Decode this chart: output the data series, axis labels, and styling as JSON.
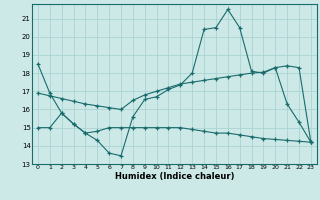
{
  "xlabel": "Humidex (Indice chaleur)",
  "bg_color": "#cce9e8",
  "grid_color": "#aad4d3",
  "line_color": "#1a6b6b",
  "xlim": [
    -0.5,
    23.5
  ],
  "ylim": [
    13,
    21.8
  ],
  "yticks": [
    13,
    14,
    15,
    16,
    17,
    18,
    19,
    20,
    21
  ],
  "xticks": [
    0,
    1,
    2,
    3,
    4,
    5,
    6,
    7,
    8,
    9,
    10,
    11,
    12,
    13,
    14,
    15,
    16,
    17,
    18,
    19,
    20,
    21,
    22,
    23
  ],
  "series1_x": [
    0,
    1,
    2,
    3,
    4,
    5,
    6,
    7,
    8,
    9,
    10,
    11,
    12,
    13,
    14,
    15,
    16,
    17,
    18,
    19,
    20,
    21,
    22,
    23
  ],
  "series1_y": [
    18.5,
    16.9,
    15.8,
    15.2,
    14.7,
    14.3,
    13.6,
    13.45,
    15.6,
    16.55,
    16.7,
    17.1,
    17.35,
    18.0,
    20.4,
    20.5,
    21.5,
    20.5,
    18.1,
    18.0,
    18.3,
    16.3,
    15.3,
    14.2
  ],
  "series2_x": [
    0,
    1,
    2,
    3,
    4,
    5,
    6,
    7,
    8,
    9,
    10,
    11,
    12,
    13,
    14,
    15,
    16,
    17,
    18,
    19,
    20,
    21,
    22,
    23
  ],
  "series2_y": [
    15.0,
    15.0,
    15.8,
    15.2,
    14.7,
    14.8,
    15.0,
    15.0,
    15.0,
    15.0,
    15.0,
    15.0,
    15.0,
    14.9,
    14.8,
    14.7,
    14.7,
    14.6,
    14.5,
    14.4,
    14.35,
    14.3,
    14.25,
    14.2
  ],
  "series3_x": [
    0,
    1,
    2,
    3,
    4,
    5,
    6,
    7,
    8,
    9,
    10,
    11,
    12,
    13,
    14,
    15,
    16,
    17,
    18,
    19,
    20,
    21,
    22,
    23
  ],
  "series3_y": [
    16.9,
    16.75,
    16.6,
    16.45,
    16.3,
    16.2,
    16.1,
    16.0,
    16.5,
    16.8,
    17.0,
    17.2,
    17.4,
    17.5,
    17.6,
    17.7,
    17.8,
    17.9,
    18.0,
    18.05,
    18.3,
    18.4,
    18.3,
    14.2
  ]
}
